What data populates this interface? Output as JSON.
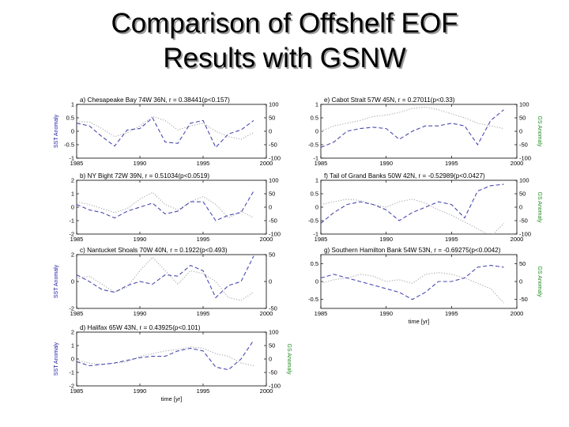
{
  "slide": {
    "title_line1": "Comparison of Offshelf EOF",
    "title_line2": "Results with GSNW"
  },
  "colors": {
    "sst": "#1a1aa0",
    "gs": "#1f8a1f",
    "sst_dash": "#4a4ab0",
    "gs_dot": "#a8a8a8",
    "axes": "#000000"
  },
  "chart_data": [
    {
      "type": "line",
      "panel": "a",
      "title": "a) Chesapeake Bay  74W 36N, r = 0.38441(p<0.157)",
      "x_ticks": [
        "1985",
        "1990",
        "1995",
        "2000"
      ],
      "y_left_ticks": [
        "1",
        "0.5",
        "0",
        "-0.5",
        "-1"
      ],
      "y_right_ticks": [
        "100",
        "50",
        "0",
        "-50",
        "-100"
      ],
      "xlim": [
        1985,
        2000
      ],
      "ylim_left": [
        -1,
        1
      ],
      "ylim_right": [
        -100,
        100
      ],
      "ylabel_left": "SST Anomaly",
      "ylabel_right": "",
      "xlabel": "",
      "sst": {
        "x": [
          1985,
          1986,
          1987,
          1988,
          1989,
          1990,
          1991,
          1992,
          1993,
          1994,
          1995,
          1996,
          1997,
          1998,
          1999
        ],
        "y": [
          0.3,
          0.2,
          -0.2,
          -0.55,
          0.05,
          0.1,
          0.5,
          -0.4,
          -0.45,
          0.3,
          0.4,
          -0.6,
          -0.1,
          0.05,
          0.4
        ]
      },
      "gs": {
        "x": [
          1985,
          1986,
          1987,
          1988,
          1989,
          1990,
          1991,
          1992,
          1993,
          1994,
          1995,
          1996,
          1997,
          1998,
          1999
        ],
        "y": [
          35,
          35,
          10,
          -20,
          -5,
          20,
          55,
          40,
          5,
          20,
          30,
          0,
          -20,
          -30,
          -5
        ]
      }
    },
    {
      "type": "line",
      "panel": "b",
      "title": "b) NY Bight  72W 39N, r = 0.51034(p<0.0519)",
      "x_ticks": [
        "1985",
        "1990",
        "1995",
        "2000"
      ],
      "y_left_ticks": [
        "2",
        "1",
        "0",
        "-1",
        "-2"
      ],
      "y_right_ticks": [
        "100",
        "50",
        "0",
        "-50",
        "-100"
      ],
      "xlim": [
        1985,
        2000
      ],
      "ylim_left": [
        -2,
        2
      ],
      "ylim_right": [
        -100,
        100
      ],
      "ylabel_left": "",
      "ylabel_right": "",
      "xlabel": "",
      "sst": {
        "x": [
          1985,
          1986,
          1987,
          1988,
          1989,
          1990,
          1991,
          1992,
          1993,
          1994,
          1995,
          1996,
          1997,
          1998,
          1999
        ],
        "y": [
          0.2,
          -0.2,
          -0.4,
          -0.8,
          -0.3,
          0.0,
          0.3,
          -0.5,
          -0.3,
          0.4,
          0.4,
          -1.0,
          -0.6,
          -0.4,
          1.2
        ]
      },
      "gs": {
        "x": [
          1985,
          1986,
          1987,
          1988,
          1989,
          1990,
          1991,
          1992,
          1993,
          1994,
          1995,
          1996,
          1997,
          1998,
          1999
        ],
        "y": [
          20,
          10,
          -5,
          -20,
          -5,
          30,
          55,
          10,
          -10,
          20,
          40,
          10,
          -40,
          -15,
          -40
        ]
      }
    },
    {
      "type": "line",
      "panel": "c",
      "title": "c) Nantucket Shoals  70W 40N, r = 0.1922(p<0.493)",
      "x_ticks": [
        "1985",
        "1990",
        "1995",
        "2000"
      ],
      "y_left_ticks": [
        "2",
        "0",
        "-2"
      ],
      "y_right_ticks": [
        "50",
        "0",
        "-50"
      ],
      "xlim": [
        1985,
        2000
      ],
      "ylim_left": [
        -2,
        2
      ],
      "ylim_right": [
        -50,
        50
      ],
      "ylabel_left": "SST Anomaly",
      "ylabel_right": "",
      "xlabel": "",
      "sst": {
        "x": [
          1985,
          1986,
          1987,
          1988,
          1989,
          1990,
          1991,
          1992,
          1993,
          1994,
          1995,
          1996,
          1997,
          1998,
          1999
        ],
        "y": [
          0.5,
          0.0,
          -0.6,
          -0.8,
          -0.3,
          0.0,
          -0.2,
          0.5,
          0.4,
          1.2,
          0.8,
          -1.2,
          -0.3,
          0.0,
          1.9
        ]
      },
      "gs": {
        "x": [
          1985,
          1986,
          1987,
          1988,
          1989,
          1990,
          1991,
          1992,
          1993,
          1994,
          1995,
          1996,
          1997,
          1998,
          1999
        ],
        "y": [
          5,
          10,
          -5,
          -20,
          -10,
          20,
          45,
          20,
          -5,
          20,
          15,
          0,
          -30,
          -35,
          -20
        ]
      }
    },
    {
      "type": "line",
      "panel": "d",
      "title": "d) Halifax  65W 43N, r = 0.43925(p<0.101)",
      "x_ticks": [
        "1985",
        "1990",
        "1995",
        "2000"
      ],
      "y_left_ticks": [
        "2",
        "1",
        "0",
        "-1",
        "-2"
      ],
      "y_right_ticks": [
        "100",
        "50",
        "0",
        "-50",
        "-100"
      ],
      "xlim": [
        1985,
        2000
      ],
      "ylim_left": [
        -2,
        2
      ],
      "ylim_right": [
        -100,
        100
      ],
      "ylabel_left": "SST Anomaly",
      "ylabel_right": "GS Anomaly",
      "xlabel": "time [yr]",
      "sst": {
        "x": [
          1985,
          1986,
          1987,
          1988,
          1989,
          1990,
          1991,
          1992,
          1993,
          1994,
          1995,
          1996,
          1997,
          1998,
          1999
        ],
        "y": [
          -0.2,
          -0.5,
          -0.4,
          -0.3,
          -0.1,
          0.1,
          0.2,
          0.2,
          0.6,
          0.8,
          0.6,
          -0.6,
          -0.8,
          0.0,
          1.4
        ]
      },
      "gs": {
        "x": [
          1985,
          1986,
          1987,
          1988,
          1989,
          1990,
          1991,
          1992,
          1993,
          1994,
          1995,
          1996,
          1997,
          1998,
          1999
        ],
        "y": [
          -5,
          -15,
          -20,
          -15,
          -10,
          10,
          20,
          30,
          35,
          45,
          40,
          20,
          10,
          -15,
          -25
        ]
      }
    },
    {
      "type": "line",
      "panel": "e",
      "title": "e) Cabot Strait  57W 45N, r = 0.27011(p<0.33)",
      "x_ticks": [
        "1985",
        "1990",
        "1995",
        "2000"
      ],
      "y_left_ticks": [
        "1",
        "0.5",
        "0",
        "-0.5",
        "-1"
      ],
      "y_right_ticks": [
        "100",
        "50",
        "0",
        "-50",
        "-100"
      ],
      "xlim": [
        1985,
        2000
      ],
      "ylim_left": [
        -1,
        1
      ],
      "ylim_right": [
        -100,
        100
      ],
      "ylabel_left": "",
      "ylabel_right": "GS Anomaly",
      "xlabel": "",
      "sst": {
        "x": [
          1985,
          1986,
          1987,
          1988,
          1989,
          1990,
          1991,
          1992,
          1993,
          1994,
          1995,
          1996,
          1997,
          1998,
          1999
        ],
        "y": [
          -0.6,
          -0.4,
          0.0,
          0.1,
          0.15,
          0.1,
          -0.3,
          0.0,
          0.2,
          0.2,
          0.3,
          0.2,
          -0.5,
          0.4,
          0.8
        ]
      },
      "gs": {
        "x": [
          1985,
          1986,
          1987,
          1988,
          1989,
          1990,
          1991,
          1992,
          1993,
          1994,
          1995,
          1996,
          1997,
          1998,
          1999
        ],
        "y": [
          0,
          20,
          30,
          40,
          55,
          60,
          70,
          85,
          90,
          80,
          65,
          50,
          30,
          20,
          10
        ]
      }
    },
    {
      "type": "line",
      "panel": "f",
      "title": "f) Tail of Grand Banks  50W 42N, r = -0.52989(p<0.0427)",
      "x_ticks": [
        "1985",
        "1990",
        "1995",
        "2000"
      ],
      "y_left_ticks": [
        "1",
        "0.5",
        "0",
        "-0.5",
        "-1"
      ],
      "y_right_ticks": [
        "100",
        "50",
        "0",
        "-50",
        "-100"
      ],
      "xlim": [
        1985,
        2000
      ],
      "ylim_left": [
        -1,
        1
      ],
      "ylim_right": [
        -100,
        100
      ],
      "ylabel_left": "",
      "ylabel_right": "GS Anomaly",
      "xlabel": "",
      "sst": {
        "x": [
          1985,
          1986,
          1987,
          1988,
          1989,
          1990,
          1991,
          1992,
          1993,
          1994,
          1995,
          1996,
          1997,
          1998,
          1999
        ],
        "y": [
          -0.6,
          -0.2,
          0.1,
          0.2,
          0.1,
          -0.1,
          -0.5,
          -0.2,
          0.0,
          0.2,
          0.1,
          -0.4,
          0.6,
          0.8,
          0.85
        ]
      },
      "gs": {
        "x": [
          1985,
          1986,
          1987,
          1988,
          1989,
          1990,
          1991,
          1992,
          1993,
          1994,
          1995,
          1996,
          1997,
          1998,
          1999
        ],
        "y": [
          10,
          20,
          30,
          25,
          10,
          0,
          20,
          30,
          15,
          -10,
          -30,
          -55,
          -80,
          -110,
          -60
        ]
      }
    },
    {
      "type": "line",
      "panel": "g",
      "title": "g) Southern Hamilton Bank  54W 53N, r = -0.69275(p<0.0042)",
      "x_ticks": [
        "1985",
        "1990",
        "1995",
        "2000"
      ],
      "y_left_ticks": [
        "0.5",
        "0",
        "-0.5"
      ],
      "y_right_ticks": [
        "50",
        "0",
        "-50"
      ],
      "xlim": [
        1985,
        2000
      ],
      "ylim_left": [
        -0.75,
        0.75
      ],
      "ylim_right": [
        -75,
        75
      ],
      "ylabel_left": "",
      "ylabel_right": "GS Anomaly",
      "xlabel": "time [yr]",
      "sst": {
        "x": [
          1985,
          1986,
          1987,
          1988,
          1989,
          1990,
          1991,
          1992,
          1993,
          1994,
          1995,
          1996,
          1997,
          1998,
          1999
        ],
        "y": [
          0.1,
          0.2,
          0.1,
          0.0,
          -0.1,
          -0.2,
          -0.3,
          -0.5,
          -0.3,
          0.0,
          0.0,
          0.1,
          0.4,
          0.45,
          0.4
        ]
      },
      "gs": {
        "x": [
          1985,
          1986,
          1987,
          1988,
          1989,
          1990,
          1991,
          1992,
          1993,
          1994,
          1995,
          1996,
          1997,
          1998,
          1999
        ],
        "y": [
          -5,
          5,
          10,
          20,
          15,
          0,
          5,
          -5,
          20,
          25,
          20,
          10,
          -5,
          -20,
          -60
        ]
      }
    }
  ]
}
